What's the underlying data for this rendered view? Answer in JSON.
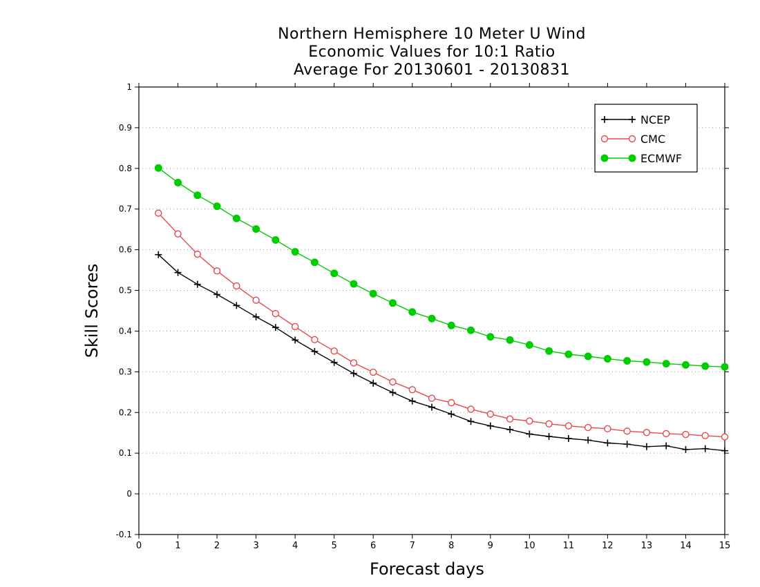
{
  "chart_data": {
    "type": "line",
    "title_lines": [
      "Northern Hemisphere 10 Meter U Wind",
      "Economic Values for 10:1 Ratio",
      "Average For 20130601 - 20130831"
    ],
    "xlabel": "Forecast days",
    "ylabel": "Skill Scores",
    "xlim": [
      0,
      15
    ],
    "ylim": [
      -0.1,
      1
    ],
    "xticks": [
      0,
      1,
      2,
      3,
      4,
      5,
      6,
      7,
      8,
      9,
      10,
      11,
      12,
      13,
      14,
      15
    ],
    "yticks": [
      -0.1,
      0,
      0.1,
      0.2,
      0.3,
      0.4,
      0.5,
      0.6,
      0.7,
      0.8,
      0.9,
      1
    ],
    "ytick_labels": [
      "-0.1",
      "0",
      "0.1",
      "0.2",
      "0.3",
      "0.4",
      "0.5",
      "0.6",
      "0.7",
      "0.8",
      "0.9",
      "1"
    ],
    "grid": "horizontal dotted",
    "legend_position": "top-right",
    "x": [
      0.5,
      1,
      1.5,
      2,
      2.5,
      3,
      3.5,
      4,
      4.5,
      5,
      5.5,
      6,
      6.5,
      7,
      7.5,
      8,
      8.5,
      9,
      9.5,
      10,
      10.5,
      11,
      11.5,
      12,
      12.5,
      13,
      13.5,
      14,
      14.5,
      15
    ],
    "series": [
      {
        "name": "NCEP",
        "color": "#000000",
        "marker": "plus",
        "values": [
          0.588,
          0.544,
          0.515,
          0.49,
          0.463,
          0.435,
          0.409,
          0.378,
          0.35,
          0.323,
          0.296,
          0.272,
          0.249,
          0.228,
          0.213,
          0.196,
          0.178,
          0.167,
          0.158,
          0.147,
          0.141,
          0.136,
          0.132,
          0.125,
          0.122,
          0.116,
          0.118,
          0.109,
          0.111,
          0.106
        ]
      },
      {
        "name": "CMC",
        "color": "#e8474a",
        "marker": "open-circle",
        "values": [
          0.69,
          0.639,
          0.589,
          0.548,
          0.511,
          0.476,
          0.443,
          0.411,
          0.379,
          0.351,
          0.322,
          0.299,
          0.275,
          0.256,
          0.235,
          0.224,
          0.208,
          0.196,
          0.184,
          0.179,
          0.172,
          0.167,
          0.163,
          0.16,
          0.154,
          0.151,
          0.148,
          0.146,
          0.143,
          0.14
        ]
      },
      {
        "name": "ECMWF",
        "color": "#00cc00",
        "marker": "filled-circle",
        "values": [
          0.801,
          0.765,
          0.734,
          0.707,
          0.677,
          0.651,
          0.624,
          0.595,
          0.569,
          0.542,
          0.516,
          0.492,
          0.469,
          0.447,
          0.431,
          0.414,
          0.402,
          0.386,
          0.378,
          0.366,
          0.351,
          0.343,
          0.338,
          0.332,
          0.327,
          0.324,
          0.32,
          0.317,
          0.314,
          0.312
        ]
      }
    ]
  }
}
